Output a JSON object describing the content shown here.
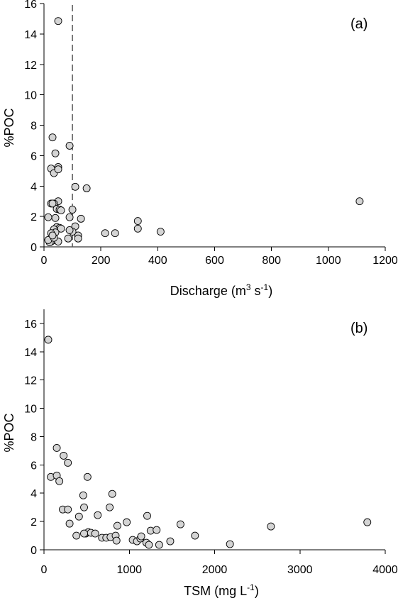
{
  "chart_data": [
    {
      "type": "scatter",
      "panel_label": "(a)",
      "xlabel": "Discharge (m",
      "xlabel_sup1": "3",
      "xlabel_mid": " s",
      "xlabel_sup2": "-1",
      "xlabel_end": ")",
      "ylabel": "%POC",
      "xlim": [
        0,
        1200
      ],
      "ylim": [
        0,
        16
      ],
      "xticks": [
        "0",
        "200",
        "400",
        "600",
        "800",
        "1000",
        "1200"
      ],
      "yticks": [
        "0",
        "2",
        "4",
        "6",
        "8",
        "10",
        "12",
        "14",
        "16"
      ],
      "reference_line": {
        "x": 100,
        "style": "dashed"
      },
      "series": [
        {
          "x": [
            50,
            30,
            90,
            40,
            25,
            50,
            35,
            50,
            110,
            150,
            50,
            25,
            35,
            30,
            45,
            55,
            100,
            60,
            15,
            90,
            40,
            130,
            110,
            45,
            55,
            60,
            330,
            35,
            40,
            25,
            330,
            410,
            215,
            250,
            120,
            100,
            90,
            35,
            25,
            50,
            20,
            15,
            35,
            30,
            85,
            120,
            1110
          ],
          "y": [
            14.85,
            7.2,
            6.65,
            6.15,
            5.15,
            5.25,
            4.85,
            5.1,
            3.95,
            3.85,
            3.0,
            2.85,
            2.85,
            2.85,
            2.5,
            2.45,
            2.45,
            2.4,
            1.95,
            1.95,
            1.9,
            1.85,
            1.35,
            1.3,
            1.25,
            1.2,
            1.7,
            1.15,
            0.95,
            0.9,
            1.2,
            1.0,
            0.9,
            0.9,
            0.75,
            1.0,
            1.1,
            0.45,
            0.35,
            0.35,
            0.3,
            0.45,
            0.6,
            0.75,
            0.55,
            0.55,
            3.0
          ]
        }
      ]
    },
    {
      "type": "scatter",
      "panel_label": "(b)",
      "xlabel": "TSM (mg L",
      "xlabel_sup1": "-1",
      "xlabel_end": ")",
      "ylabel": "%POC",
      "xlim": [
        0,
        4000
      ],
      "ylim": [
        0,
        17
      ],
      "xticks": [
        "0",
        "1000",
        "2000",
        "3000",
        "4000"
      ],
      "yticks": [
        "0",
        "2",
        "4",
        "6",
        "8",
        "10",
        "12",
        "14",
        "16"
      ],
      "series": [
        {
          "x": [
            50,
            150,
            230,
            280,
            80,
            150,
            180,
            510,
            460,
            800,
            220,
            280,
            470,
            630,
            770,
            970,
            1210,
            1600,
            3790,
            2660,
            860,
            1250,
            1320,
            300,
            410,
            490,
            520,
            550,
            600,
            680,
            730,
            780,
            840,
            850,
            1040,
            1090,
            1130,
            1140,
            1200,
            1230,
            1480,
            1770,
            2180,
            380,
            470,
            1350
          ],
          "y": [
            14.85,
            7.2,
            6.65,
            6.15,
            5.15,
            5.25,
            4.85,
            5.15,
            3.85,
            3.95,
            2.85,
            2.85,
            3.0,
            2.45,
            3.0,
            1.95,
            2.4,
            1.8,
            1.95,
            1.65,
            1.7,
            1.35,
            1.4,
            1.85,
            2.35,
            1.15,
            1.25,
            1.2,
            1.15,
            0.85,
            0.85,
            0.9,
            1.0,
            0.65,
            0.7,
            0.6,
            0.8,
            0.95,
            0.5,
            0.35,
            0.6,
            1.0,
            0.4,
            1.0,
            1.15,
            0.35
          ]
        }
      ]
    }
  ]
}
